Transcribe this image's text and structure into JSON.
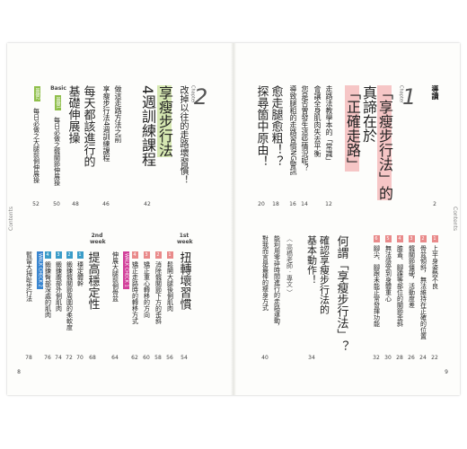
{
  "side_label": "Contents",
  "page_numbers": [
    "8",
    "9"
  ],
  "intro": {
    "title": "導讀",
    "page": "2"
  },
  "chapter1": {
    "label": "Chapter",
    "number": "1",
    "title": [
      "「享瘦步行法」的",
      "真諦在於",
      "「正確走路」"
    ],
    "entries": [
      {
        "text": "走路法教學本的「常識」",
        "page": "12"
      },
      {
        "text": "會讓全身肌肉失去平衡"
      },
      {
        "text": "您是否曾發生這些情況呢？",
        "page": "14"
      },
      {
        "text": "導致腿粗的走路習慣NG警訊",
        "page": "16"
      },
      {
        "text": "愈走腿愈粗！？",
        "page": "18"
      },
      {
        "text": "探尋箇中原由！",
        "page": "20"
      }
    ]
  },
  "part1": {
    "items": [
      {
        "num": "1",
        "text": "上半身姿勢不良",
        "page": "22"
      },
      {
        "num": "2",
        "text": "骨盆傾斜，無法維持在正確的位置",
        "page": "24"
      },
      {
        "num": "3",
        "text": "髖關節僵硬，活動度差",
        "page": "26"
      },
      {
        "num": "4",
        "text": "膝蓋、腳踝等部位的關節歪斜",
        "page": "28"
      },
      {
        "num": "5",
        "text": "無法感受到身體重心",
        "page": "30"
      },
      {
        "num": "6",
        "text": "腳尖、腳跟未能正常發揮功能",
        "page": "32"
      }
    ],
    "title": "何謂「享瘦步行法」？",
    "subtitle": [
      "確認享瘦步行法的",
      "基本動作！"
    ],
    "subtitle_page": "34",
    "essay": {
      "label": "〈 高橋老師 · 專文 〉",
      "lines": [
        "能利用零碎時間進行的走路運動，",
        "對我而言是最棒的瘦身方式"
      ],
      "page": "40"
    }
  },
  "chapter2": {
    "label": "Chapter",
    "number": "2",
    "lead": "改掉以往的走路壞習慣！",
    "title": [
      "享瘦步行法",
      "4週訓練課程"
    ],
    "page": "42",
    "intro": {
      "lines": [
        "做這走路方法之前",
        "享瘦步行法4週訓練課程"
      ],
      "page": "46"
    },
    "basic": {
      "tag": "Basic",
      "title": [
        "每天都該進行的",
        "基礎伸展操"
      ],
      "page": "48",
      "items": [
        {
          "num": "基礎1",
          "text": "每日必做之髖關節伸展操",
          "page": "50"
        },
        {
          "num": "基礎2",
          "text": "每日必做之大腿前側伸展操",
          "page": "52"
        }
      ]
    }
  },
  "week1": {
    "label": [
      "1st",
      "week"
    ],
    "title": "扭轉壞習慣",
    "page": "54",
    "items": [
      {
        "num": "1",
        "text": "鬆開大腿後側肌肉",
        "page": "56"
      },
      {
        "num": "2",
        "text": "消除髖關節下方的歪斜",
        "page": "58"
      },
      {
        "num": "3",
        "text": "矯正重心轉移的方向",
        "page": "60"
      },
      {
        "num": "4",
        "text": "矯正走路時的轉移方式",
        "page": "62"
      }
    ],
    "check": {
      "label": "WALK CHECK 1",
      "text": "伸展大腿前側骨盆",
      "page": "64"
    }
  },
  "week2": {
    "label": [
      "2nd",
      "week"
    ],
    "title": "提高穩定性",
    "page": "68",
    "items": [
      {
        "num": "1",
        "text": "穩定體幹",
        "page": "70"
      },
      {
        "num": "2",
        "text": "鍛鍊髖關節周圍的柔軟度",
        "page": "72"
      },
      {
        "num": "3",
        "text": "鍛鍊腹部外側肌肉",
        "page": "74"
      },
      {
        "num": "4",
        "text": "鍛鍊臀部深處的肌肉",
        "page": "76"
      }
    ],
    "check": {
      "label": "WALK CHECK 2",
      "text": "暫留大拇趾步行法",
      "page": "78"
    }
  }
}
